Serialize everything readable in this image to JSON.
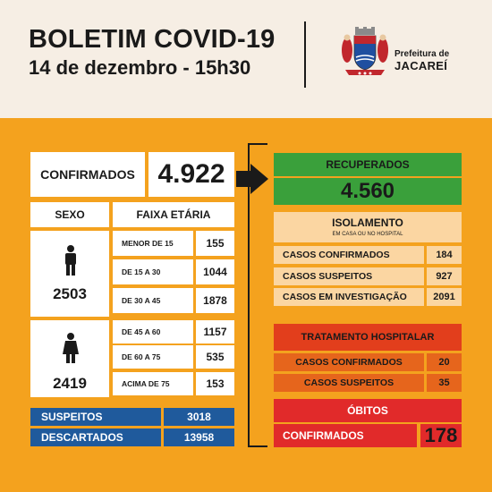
{
  "header": {
    "title": "BOLETIM COVID-19",
    "subtitle": "14 de dezembro - 15h30",
    "prefeitura_line1": "Prefeitura de",
    "prefeitura_line2": "JACAREÍ"
  },
  "confirmados": {
    "label": "CONFIRMADOS",
    "value": "4.922"
  },
  "sexo": {
    "header": "SEXO",
    "male_icon": "male-person-icon",
    "male_total": "2503",
    "female_icon": "female-person-icon",
    "female_total": "2419"
  },
  "faixa_etaria": {
    "header": "FAIXA ETÁRIA",
    "rows": [
      {
        "label": "MENOR DE 15",
        "value": "155"
      },
      {
        "label": "DE 15 A 30",
        "value": "1044"
      },
      {
        "label": "DE 30 A 45",
        "value": "1878"
      },
      {
        "label": "DE 45 A 60",
        "value": "1157"
      },
      {
        "label": "DE 60 A 75",
        "value": "535"
      },
      {
        "label": "ACIMA DE 75",
        "value": "153"
      }
    ]
  },
  "suspeitos": {
    "label": "SUSPEITOS",
    "value": "3018"
  },
  "descartados": {
    "label": "DESCARTADOS",
    "value": "13958"
  },
  "recuperados": {
    "label": "RECUPERADOS",
    "value": "4.560"
  },
  "isolamento": {
    "title": "ISOLAMENTO",
    "subtitle": "EM CASA OU NO HOSPITAL",
    "rows": [
      {
        "label": "CASOS CONFIRMADOS",
        "value": "184"
      },
      {
        "label": "CASOS SUSPEITOS",
        "value": "927"
      },
      {
        "label": "CASOS EM INVESTIGAÇÃO",
        "value": "2091"
      }
    ]
  },
  "tratamento": {
    "title": "TRATAMENTO HOSPITALAR",
    "rows": [
      {
        "label": "CASOS CONFIRMADOS",
        "value": "20"
      },
      {
        "label": "CASOS SUSPEITOS",
        "value": "35"
      }
    ]
  },
  "obitos": {
    "title": "ÓBITOS",
    "label": "CONFIRMADOS",
    "value": "178"
  },
  "colors": {
    "background": "#f4a21e",
    "header_bg": "#f6eee4",
    "blue": "#1f5a9c",
    "green": "#3aa03b",
    "red": "#e12a2a",
    "orange": "#e6651c"
  }
}
